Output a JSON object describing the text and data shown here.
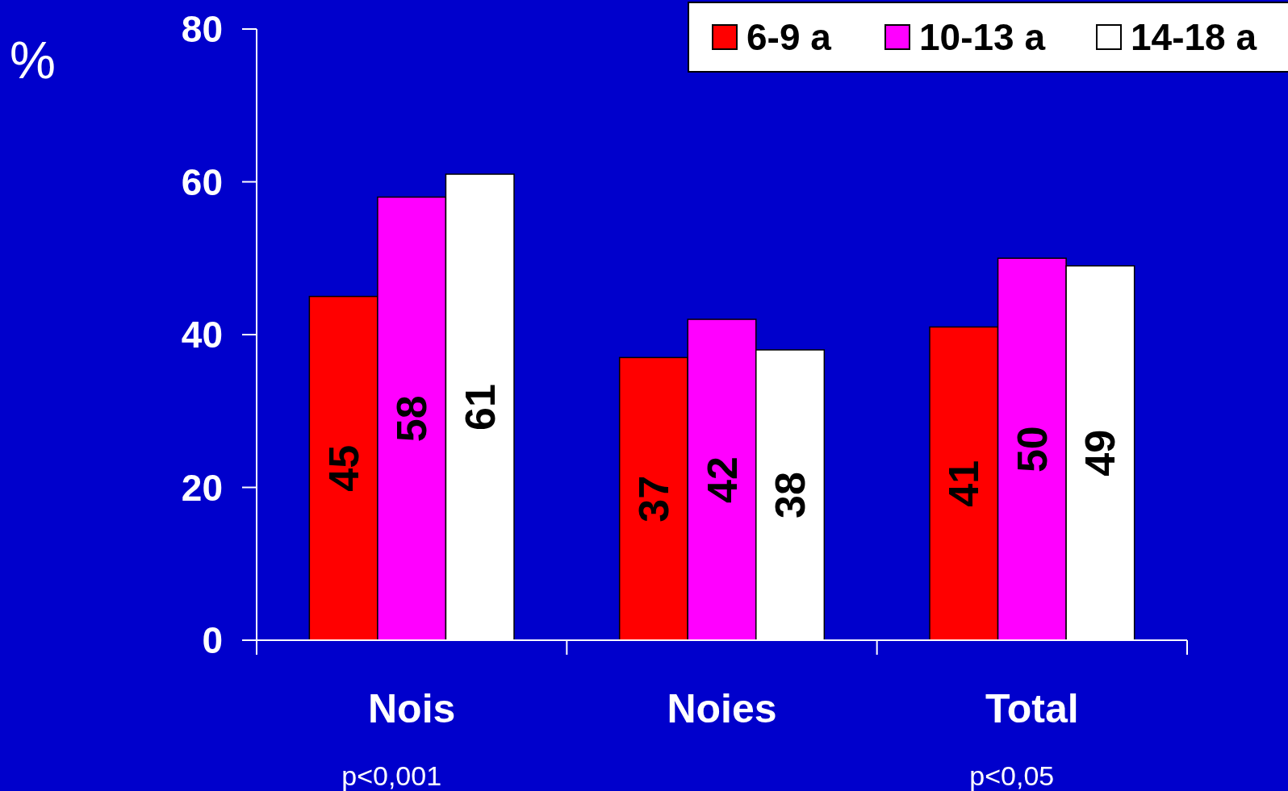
{
  "chart_data": {
    "type": "bar",
    "ylabel": "%",
    "categories": [
      "Nois",
      "Noies",
      "Total"
    ],
    "series": [
      {
        "name": "6-9 a",
        "color": "#ff0000",
        "values": [
          45,
          37,
          41
        ]
      },
      {
        "name": "10-13 a",
        "color": "#ff00ff",
        "values": [
          58,
          42,
          50
        ]
      },
      {
        "name": "14-18 a",
        "color": "#ffffff",
        "values": [
          61,
          38,
          49
        ]
      }
    ],
    "ylim": [
      0,
      80
    ],
    "yticks": [
      0,
      20,
      40,
      60,
      80
    ],
    "grid": false,
    "legend": "top right",
    "data_labels": true,
    "annotations": [
      "p<0,001",
      "p<0,05"
    ]
  }
}
